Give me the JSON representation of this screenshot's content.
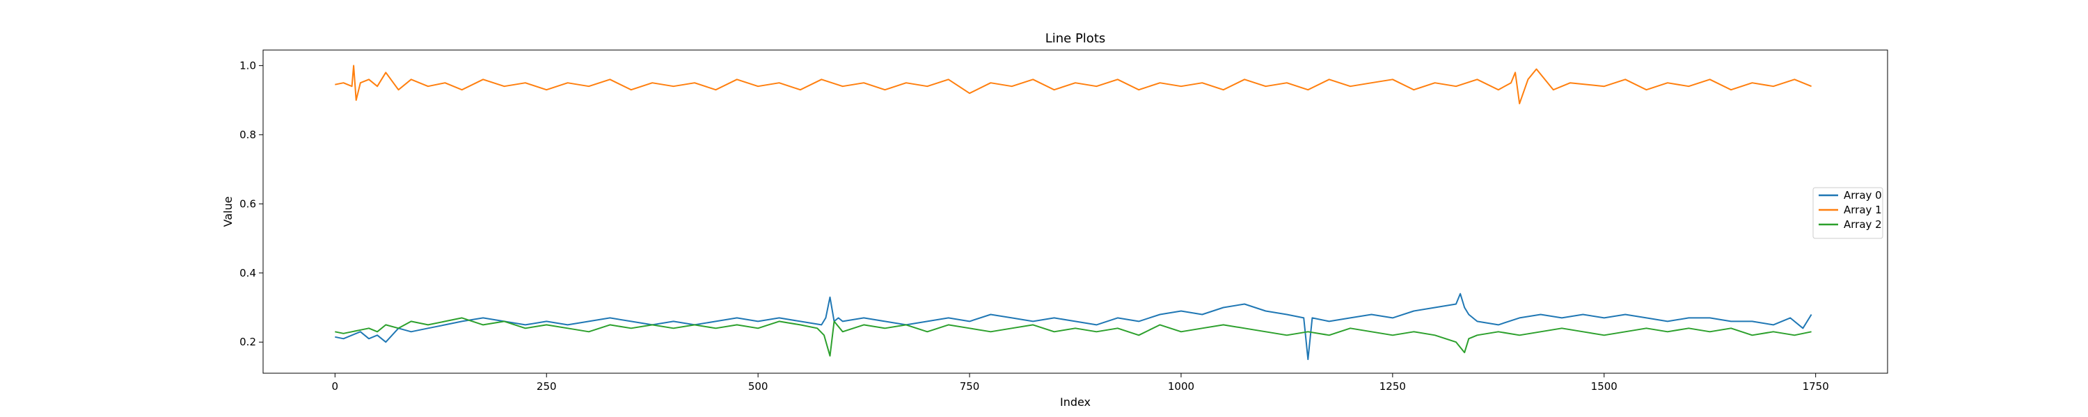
{
  "chart_data": {
    "type": "line",
    "title": "Line Plots",
    "xlabel": "Index",
    "ylabel": "Value",
    "xlim": [
      -85,
      1835
    ],
    "ylim": [
      0.11,
      1.045
    ],
    "xticks": [
      0,
      250,
      500,
      750,
      1000,
      1250,
      1500,
      1750
    ],
    "xtick_labels": [
      "0",
      "250",
      "500",
      "750",
      "1000",
      "1250",
      "1500",
      "1750"
    ],
    "yticks": [
      0.2,
      0.4,
      0.6,
      0.8,
      1.0
    ],
    "ytick_labels": [
      "0.2",
      "0.4",
      "0.6",
      "0.8",
      "1.0"
    ],
    "grid": false,
    "legend_position": "center-right",
    "series": [
      {
        "name": "Array 0",
        "color": "#1f77b4",
        "x": [
          0,
          10,
          20,
          30,
          40,
          50,
          60,
          75,
          90,
          110,
          130,
          150,
          175,
          200,
          225,
          250,
          275,
          300,
          325,
          350,
          375,
          400,
          425,
          450,
          475,
          500,
          525,
          550,
          575,
          580,
          585,
          590,
          595,
          600,
          625,
          650,
          675,
          700,
          725,
          750,
          775,
          800,
          825,
          850,
          875,
          900,
          925,
          950,
          975,
          1000,
          1025,
          1050,
          1075,
          1100,
          1125,
          1145,
          1150,
          1155,
          1175,
          1200,
          1225,
          1250,
          1275,
          1300,
          1325,
          1330,
          1335,
          1340,
          1350,
          1375,
          1400,
          1425,
          1450,
          1475,
          1500,
          1525,
          1550,
          1575,
          1600,
          1625,
          1650,
          1675,
          1700,
          1720,
          1735,
          1745
        ],
        "values": [
          0.215,
          0.21,
          0.22,
          0.23,
          0.21,
          0.22,
          0.2,
          0.24,
          0.23,
          0.24,
          0.25,
          0.26,
          0.27,
          0.26,
          0.25,
          0.26,
          0.25,
          0.26,
          0.27,
          0.26,
          0.25,
          0.26,
          0.25,
          0.26,
          0.27,
          0.26,
          0.27,
          0.26,
          0.25,
          0.27,
          0.33,
          0.26,
          0.27,
          0.26,
          0.27,
          0.26,
          0.25,
          0.26,
          0.27,
          0.26,
          0.28,
          0.27,
          0.26,
          0.27,
          0.26,
          0.25,
          0.27,
          0.26,
          0.28,
          0.29,
          0.28,
          0.3,
          0.31,
          0.29,
          0.28,
          0.27,
          0.15,
          0.27,
          0.26,
          0.27,
          0.28,
          0.27,
          0.29,
          0.3,
          0.31,
          0.34,
          0.3,
          0.28,
          0.26,
          0.25,
          0.27,
          0.28,
          0.27,
          0.28,
          0.27,
          0.28,
          0.27,
          0.26,
          0.27,
          0.27,
          0.26,
          0.26,
          0.25,
          0.27,
          0.24,
          0.28
        ]
      },
      {
        "name": "Array 1",
        "color": "#ff7f0e",
        "x": [
          0,
          10,
          20,
          22,
          25,
          30,
          40,
          50,
          60,
          75,
          90,
          110,
          130,
          150,
          175,
          200,
          225,
          250,
          275,
          300,
          325,
          350,
          375,
          400,
          425,
          450,
          475,
          500,
          525,
          550,
          575,
          600,
          625,
          650,
          675,
          700,
          725,
          750,
          775,
          800,
          825,
          850,
          875,
          900,
          925,
          950,
          975,
          1000,
          1025,
          1050,
          1075,
          1100,
          1125,
          1150,
          1175,
          1200,
          1225,
          1250,
          1275,
          1300,
          1325,
          1350,
          1375,
          1390,
          1395,
          1400,
          1410,
          1420,
          1440,
          1460,
          1500,
          1525,
          1550,
          1575,
          1600,
          1625,
          1650,
          1675,
          1700,
          1725,
          1745
        ],
        "values": [
          0.945,
          0.95,
          0.94,
          1.0,
          0.9,
          0.95,
          0.96,
          0.94,
          0.98,
          0.93,
          0.96,
          0.94,
          0.95,
          0.93,
          0.96,
          0.94,
          0.95,
          0.93,
          0.95,
          0.94,
          0.96,
          0.93,
          0.95,
          0.94,
          0.95,
          0.93,
          0.96,
          0.94,
          0.95,
          0.93,
          0.96,
          0.94,
          0.95,
          0.93,
          0.95,
          0.94,
          0.96,
          0.92,
          0.95,
          0.94,
          0.96,
          0.93,
          0.95,
          0.94,
          0.96,
          0.93,
          0.95,
          0.94,
          0.95,
          0.93,
          0.96,
          0.94,
          0.95,
          0.93,
          0.96,
          0.94,
          0.95,
          0.96,
          0.93,
          0.95,
          0.94,
          0.96,
          0.93,
          0.95,
          0.98,
          0.89,
          0.96,
          0.99,
          0.93,
          0.95,
          0.94,
          0.96,
          0.93,
          0.95,
          0.94,
          0.96,
          0.93,
          0.95,
          0.94,
          0.96,
          0.94
        ]
      },
      {
        "name": "Array 2",
        "color": "#2ca02c",
        "x": [
          0,
          10,
          20,
          30,
          40,
          50,
          60,
          75,
          90,
          110,
          130,
          150,
          175,
          200,
          225,
          250,
          275,
          300,
          325,
          350,
          375,
          400,
          425,
          450,
          475,
          500,
          525,
          550,
          570,
          578,
          585,
          590,
          600,
          625,
          650,
          675,
          700,
          725,
          750,
          775,
          800,
          825,
          850,
          875,
          900,
          925,
          950,
          975,
          1000,
          1025,
          1050,
          1075,
          1100,
          1125,
          1150,
          1175,
          1200,
          1225,
          1250,
          1275,
          1300,
          1325,
          1335,
          1340,
          1350,
          1375,
          1400,
          1425,
          1450,
          1475,
          1500,
          1525,
          1550,
          1575,
          1600,
          1625,
          1650,
          1675,
          1700,
          1725,
          1745
        ],
        "values": [
          0.23,
          0.225,
          0.23,
          0.235,
          0.24,
          0.23,
          0.25,
          0.24,
          0.26,
          0.25,
          0.26,
          0.27,
          0.25,
          0.26,
          0.24,
          0.25,
          0.24,
          0.23,
          0.25,
          0.24,
          0.25,
          0.24,
          0.25,
          0.24,
          0.25,
          0.24,
          0.26,
          0.25,
          0.24,
          0.22,
          0.16,
          0.26,
          0.23,
          0.25,
          0.24,
          0.25,
          0.23,
          0.25,
          0.24,
          0.23,
          0.24,
          0.25,
          0.23,
          0.24,
          0.23,
          0.24,
          0.22,
          0.25,
          0.23,
          0.24,
          0.25,
          0.24,
          0.23,
          0.22,
          0.23,
          0.22,
          0.24,
          0.23,
          0.22,
          0.23,
          0.22,
          0.2,
          0.17,
          0.21,
          0.22,
          0.23,
          0.22,
          0.23,
          0.24,
          0.23,
          0.22,
          0.23,
          0.24,
          0.23,
          0.24,
          0.23,
          0.24,
          0.22,
          0.23,
          0.22,
          0.23
        ]
      }
    ]
  }
}
